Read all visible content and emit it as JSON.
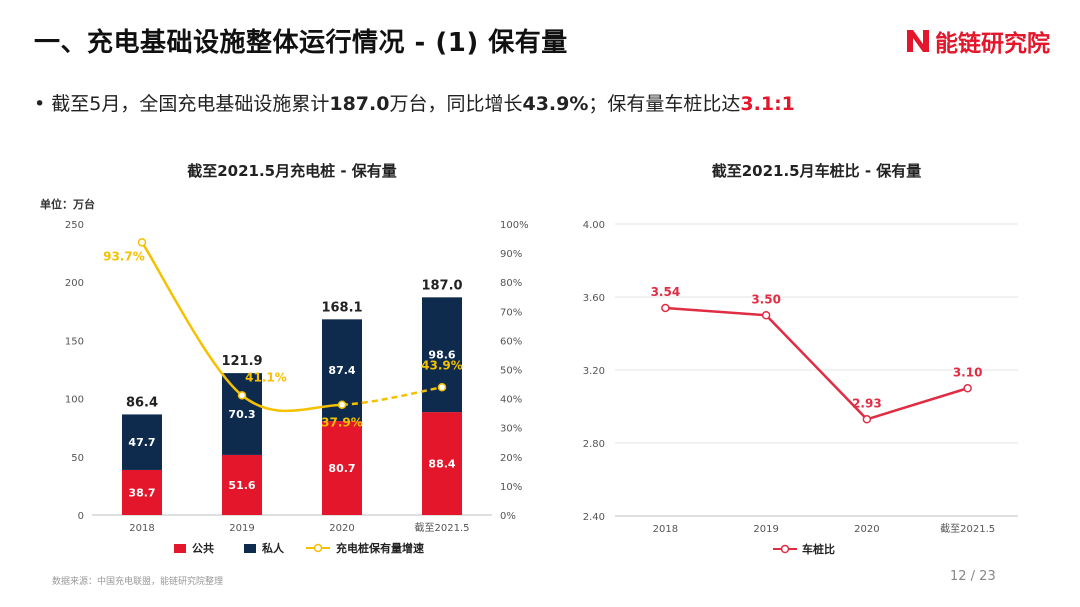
{
  "header": {
    "title": "一、充电基础设施整体运行情况 - (1) 保有量",
    "logo_text": "能链研究院"
  },
  "summary": {
    "bullet": "•",
    "text_1": "截至5月，全国充电基础设施累计",
    "value_total": "187.0",
    "text_2": "万台，同比增长",
    "value_growth": "43.9%",
    "text_3": "；保有量车桩比达",
    "value_ratio": "3.1:1"
  },
  "footer": {
    "source": "数据来源：中国充电联盟，能链研究院整理",
    "page": "12 / 23"
  },
  "colors": {
    "public": "#e3162b",
    "private": "#0e2b4e",
    "growth": "#f5c000",
    "ratio_line": "#e02d44"
  },
  "chart_data": [
    {
      "type": "bar",
      "stacked": true,
      "title": "截至2021.5月充电桩 - 保有量",
      "unit_label": "单位：万台",
      "categories": [
        "2018",
        "2019",
        "2020",
        "截至2021.5"
      ],
      "series": [
        {
          "name": "公共",
          "values": [
            38.7,
            51.6,
            80.7,
            88.4
          ]
        },
        {
          "name": "私人",
          "values": [
            47.7,
            70.3,
            87.4,
            98.6
          ]
        }
      ],
      "totals": [
        86.4,
        121.9,
        168.1,
        187.0
      ],
      "y_ticks": [
        0,
        50,
        100,
        150,
        200,
        250
      ],
      "ylim": [
        0,
        250
      ],
      "secondary_axis": {
        "ticks": [
          "0%",
          "10%",
          "20%",
          "30%",
          "40%",
          "50%",
          "60%",
          "70%",
          "80%",
          "90%",
          "100%"
        ],
        "ylim": [
          0,
          100
        ]
      },
      "line_series": {
        "name": "充电桩保有量增速",
        "values": [
          93.7,
          41.1,
          37.9,
          43.9
        ],
        "labels": [
          "93.7%",
          "41.1%",
          "37.9%",
          "43.9%"
        ],
        "last_segment_dashed": true
      },
      "legend_position": "bottom"
    },
    {
      "type": "line",
      "title": "截至2021.5月车桩比 - 保有量",
      "categories": [
        "2018",
        "2019",
        "2020",
        "截至2021.5"
      ],
      "series": [
        {
          "name": "车桩比",
          "values": [
            3.54,
            3.5,
            2.93,
            3.1
          ],
          "labels": [
            "3.54",
            "3.50",
            "2.93",
            "3.10"
          ]
        }
      ],
      "y_ticks": [
        "2.40",
        "2.80",
        "3.20",
        "3.60",
        "4.00"
      ],
      "ylim": [
        2.4,
        4.0
      ],
      "grid": true,
      "legend_position": "bottom"
    }
  ]
}
